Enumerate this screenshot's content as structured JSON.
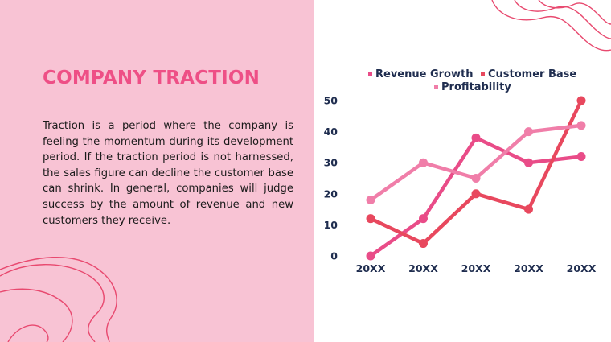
{
  "slide": {
    "title": "COMPANY TRACTION",
    "body": "Traction is a period where the company is feeling the momentum during its development period. If the traction period is not harnessed, the sales figure can decline the customer base can shrink. In general, companies will judge success by the amount of revenue and new customers they receive."
  },
  "colors": {
    "panel": "#f8c3d4",
    "title": "#ee4f86",
    "deco": "#e8496f"
  },
  "chart_data": {
    "type": "line",
    "categories": [
      "20XX",
      "20XX",
      "20XX",
      "20XX",
      "20XX"
    ],
    "ylim": [
      0,
      50
    ],
    "yticks": [
      0,
      10,
      20,
      30,
      40,
      50
    ],
    "grid": false,
    "legend_position": "top",
    "series": [
      {
        "name": "Revenue Growth",
        "color": "#e94c88",
        "values": [
          0,
          12,
          38,
          30,
          32
        ]
      },
      {
        "name": "Customer Base",
        "color": "#e8485e",
        "values": [
          12,
          4,
          20,
          15,
          50
        ]
      },
      {
        "name": "Profitability",
        "color": "#f07ea9",
        "values": [
          18,
          30,
          25,
          40,
          42
        ]
      }
    ]
  }
}
